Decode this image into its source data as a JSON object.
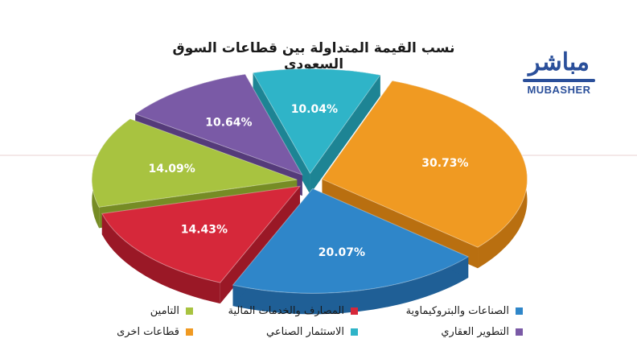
{
  "title": "نسب القيمة المتداولة بين قطاعات السوق السعودي",
  "logo": {
    "arabic": "مباشر",
    "english": "MUBASHER"
  },
  "chart_data": {
    "type": "pie",
    "slices": [
      {
        "label": "قطاعات اخرى",
        "value": 30.73,
        "value_label": "30.73%",
        "color": "#f09a22",
        "side": "#b96f10"
      },
      {
        "label": "الصناعات والبتروكيماوية",
        "value": 20.07,
        "value_label": "20.07%",
        "color": "#2f86c9",
        "side": "#1f5f96"
      },
      {
        "label": "المصارف والخدمات المالية",
        "value": 14.43,
        "value_label": "14.43%",
        "color": "#d6283a",
        "side": "#9a1826"
      },
      {
        "label": "التامين",
        "value": 14.09,
        "value_label": "14.09%",
        "color": "#a8c340",
        "side": "#768c25"
      },
      {
        "label": "التطوير العقاري",
        "value": 10.64,
        "value_label": "10.64%",
        "color": "#7a5aa6",
        "side": "#553b7a"
      },
      {
        "label": "الاستثمار الصناعي",
        "value": 10.04,
        "value_label": "10.04%",
        "color": "#2fb4c8",
        "side": "#1d8494"
      }
    ],
    "legend_placement": "bottom"
  }
}
